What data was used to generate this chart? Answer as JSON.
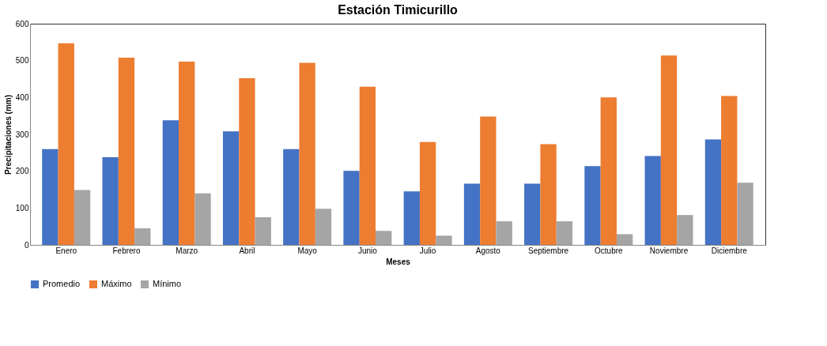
{
  "chart_data": {
    "type": "bar",
    "title": "Estación Timicurillo",
    "xlabel": "Meses",
    "ylabel": "Precipitaciones (mm)",
    "categories": [
      "Enero",
      "Febrero",
      "Marzo",
      "Abril",
      "Mayo",
      "Junio",
      "Julio",
      "Agosto",
      "Septiembre",
      "Octubre",
      "Noviembre",
      "Diciembre"
    ],
    "series": [
      {
        "name": "Promedio",
        "color": "#4472c4",
        "values": [
          260,
          238,
          338,
          308,
          260,
          201,
          145,
          166,
          166,
          214,
          241,
          286
        ]
      },
      {
        "name": "Máximo",
        "color": "#ed7d31",
        "values": [
          547,
          508,
          497,
          452,
          494,
          429,
          279,
          348,
          273,
          400,
          514,
          404
        ]
      },
      {
        "name": "Mínimo",
        "color": "#a5a5a5",
        "values": [
          149,
          45,
          140,
          75,
          98,
          38,
          25,
          64,
          64,
          29,
          81,
          169
        ]
      }
    ],
    "ylim": [
      0,
      600
    ],
    "yticks": [
      0,
      100,
      200,
      300,
      400,
      500,
      600
    ],
    "grid": false,
    "legend": "bottom"
  }
}
